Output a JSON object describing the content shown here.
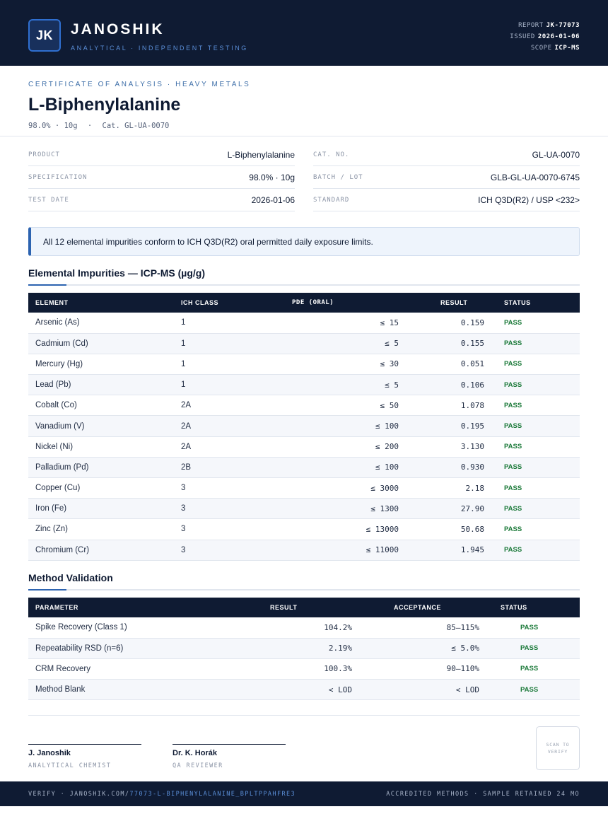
{
  "header": {
    "logo": "JK",
    "brand": "JANOSHIK",
    "tagline": "ANALYTICAL · INDEPENDENT TESTING",
    "report_label": "REPORT",
    "report_value": "JK-77073",
    "issued_label": "ISSUED",
    "issued_value": "2026-01-06",
    "scope_label": "SCOPE",
    "scope_value": "ICP-MS"
  },
  "certificate": {
    "eyebrow": "CERTIFICATE OF ANALYSIS · HEAVY METALS",
    "title": "L-Biphenylalanine",
    "subline_spec": "98.0% · 10g",
    "subline_sep": "·",
    "subline_cat": "Cat. GL-UA-0070"
  },
  "info": {
    "product_label": "PRODUCT",
    "product_value": "L-Biphenylalanine",
    "spec_label": "SPECIFICATION",
    "spec_value": "98.0% · 10g",
    "date_label": "TEST DATE",
    "date_value": "2026-01-06",
    "cat_label": "CAT. NO.",
    "cat_value": "GL-UA-0070",
    "batch_label": "BATCH / LOT",
    "batch_value": "GLB-GL-UA-0070-6745",
    "standard_label": "STANDARD",
    "standard_value": "ICH Q3D(R2) / USP <232>"
  },
  "notice": "All 12 elemental impurities conform to ICH Q3D(R2) oral permitted daily exposure limits.",
  "impurities": {
    "heading": "Elemental Impurities — ICP-MS (µg/g)",
    "headers": [
      "ELEMENT",
      "ICH CLASS",
      "PDE (ORAL)",
      "RESULT",
      "STATUS"
    ],
    "rows": [
      [
        "Arsenic (As)",
        "1",
        "≤ 15",
        "0.159",
        "PASS"
      ],
      [
        "Cadmium (Cd)",
        "1",
        "≤ 5",
        "0.155",
        "PASS"
      ],
      [
        "Mercury (Hg)",
        "1",
        "≤ 30",
        "0.051",
        "PASS"
      ],
      [
        "Lead (Pb)",
        "1",
        "≤ 5",
        "0.106",
        "PASS"
      ],
      [
        "Cobalt (Co)",
        "2A",
        "≤ 50",
        "1.078",
        "PASS"
      ],
      [
        "Vanadium (V)",
        "2A",
        "≤ 100",
        "0.195",
        "PASS"
      ],
      [
        "Nickel (Ni)",
        "2A",
        "≤ 200",
        "3.130",
        "PASS"
      ],
      [
        "Palladium (Pd)",
        "2B",
        "≤ 100",
        "0.930",
        "PASS"
      ],
      [
        "Copper (Cu)",
        "3",
        "≤ 3000",
        "2.18",
        "PASS"
      ],
      [
        "Iron (Fe)",
        "3",
        "≤ 1300",
        "27.90",
        "PASS"
      ],
      [
        "Zinc (Zn)",
        "3",
        "≤ 13000",
        "50.68",
        "PASS"
      ],
      [
        "Chromium (Cr)",
        "3",
        "≤ 11000",
        "1.945",
        "PASS"
      ]
    ]
  },
  "validation": {
    "heading": "Method Validation",
    "headers": [
      "PARAMETER",
      "RESULT",
      "ACCEPTANCE",
      "STATUS"
    ],
    "rows": [
      [
        "Spike Recovery (Class 1)",
        "104.2%",
        "85–115%",
        "PASS"
      ],
      [
        "Repeatability RSD (n=6)",
        "2.19%",
        "≤ 5.0%",
        "PASS"
      ],
      [
        "CRM Recovery",
        "100.3%",
        "90–110%",
        "PASS"
      ],
      [
        "Method Blank",
        "< LOD",
        "< LOD",
        "PASS"
      ]
    ]
  },
  "signatures": {
    "chemist_name": "J. Janoshik",
    "chemist_role": "ANALYTICAL CHEMIST",
    "reviewer_name": "Dr. K. Horák",
    "reviewer_role": "QA REVIEWER",
    "scan_text": "SCAN TO VERIFY"
  },
  "footer": {
    "verify_prefix": "VERIFY · JANOSHIK.COM/",
    "verify_link": "77073-L-BIPHENYLALANINE_BPLTPPAHFRE3",
    "right": "ACCREDITED METHODS · SAMPLE RETAINED 24 MO"
  },
  "colors": {
    "navy": "#0f1b33",
    "accent": "#2c63b0",
    "pass": "#1c7a3a"
  }
}
